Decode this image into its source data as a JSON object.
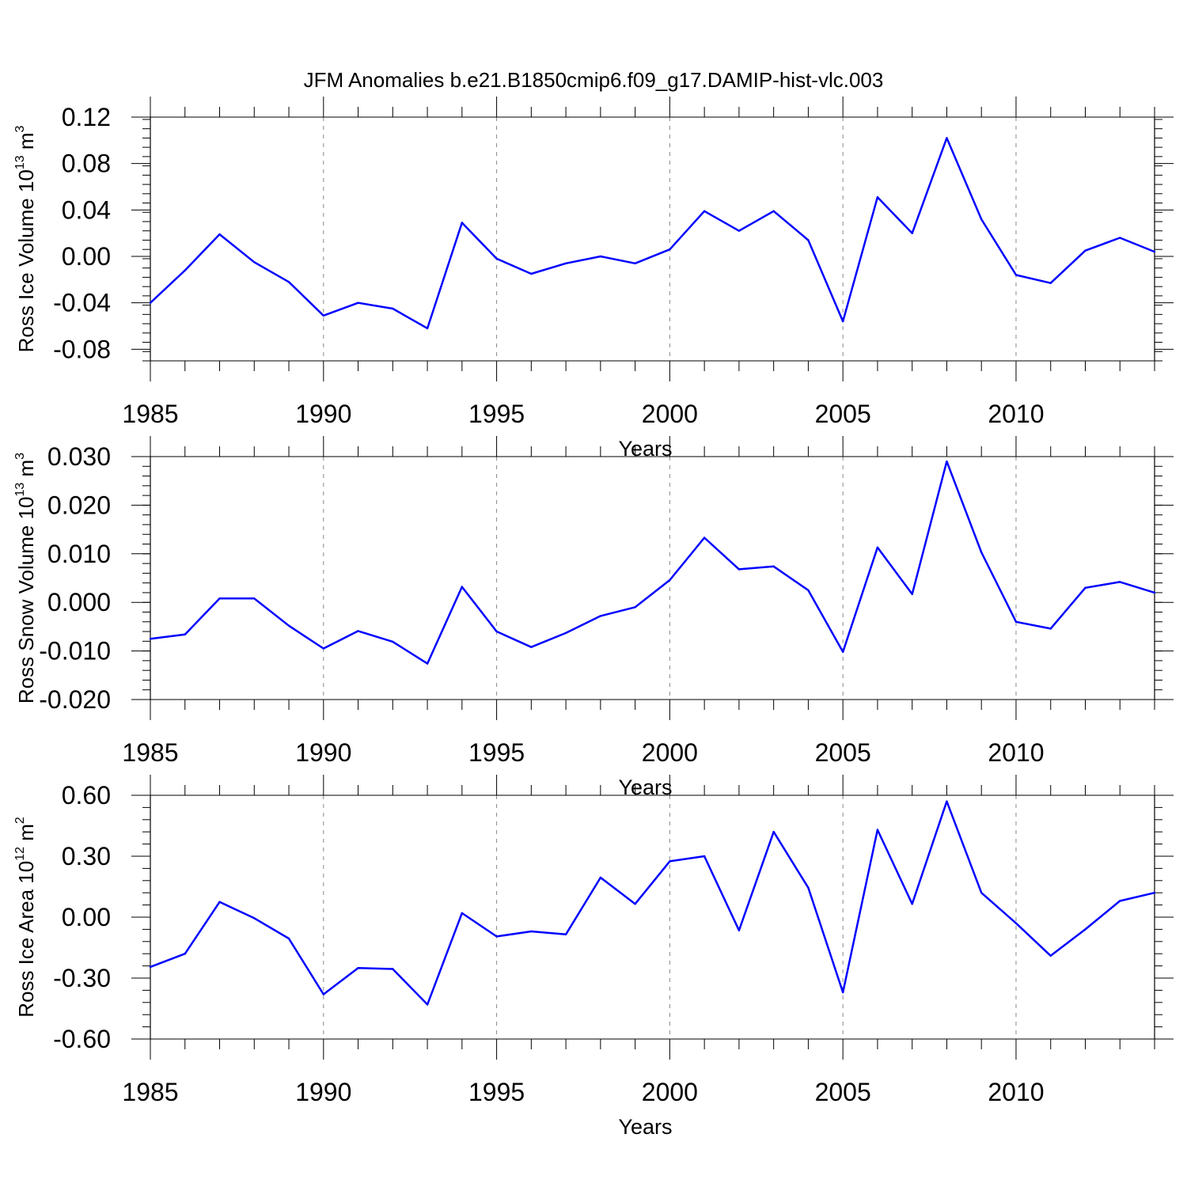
{
  "title": "JFM Anomalies b.e21.B1850cmip6.f09_g17.DAMIP-hist-vlc.003",
  "colors": {
    "line": "#0000ff",
    "axis": "#000000",
    "grid": "#888888"
  },
  "chart_data": [
    {
      "type": "line",
      "ylabel": {
        "main": "Ross Ice Volume 10",
        "exp": "13",
        "unit": " m",
        "unit_exp": "3"
      },
      "xlabel": "Years",
      "xlim": [
        1985,
        2014
      ],
      "ylim": [
        -0.09,
        0.12
      ],
      "yticks": [
        0.12,
        0.08,
        0.04,
        0.0,
        -0.04,
        -0.08
      ],
      "ytick_labels": [
        "0.12",
        "0.08",
        "0.04",
        "0.00",
        "-0.04",
        "-0.08"
      ],
      "xticks": [
        1985,
        1990,
        1995,
        2000,
        2005,
        2010
      ],
      "xtick_labels": [
        "1985",
        "1990",
        "1995",
        "2000",
        "2005",
        "2010"
      ],
      "x": [
        1985,
        1986,
        1987,
        1988,
        1989,
        1990,
        1991,
        1992,
        1993,
        1994,
        1995,
        1996,
        1997,
        1998,
        1999,
        2000,
        2001,
        2002,
        2003,
        2004,
        2005,
        2006,
        2007,
        2008,
        2009,
        2010,
        2011,
        2012,
        2013,
        2014
      ],
      "series": [
        {
          "name": "Ross Ice Volume",
          "values": [
            -0.04,
            -0.012,
            0.019,
            -0.005,
            -0.022,
            -0.051,
            -0.04,
            -0.045,
            -0.062,
            0.029,
            -0.002,
            -0.015,
            -0.006,
            0.0,
            -0.006,
            0.006,
            0.039,
            0.022,
            0.039,
            0.014,
            -0.056,
            0.051,
            0.02,
            0.102,
            0.032,
            -0.016,
            -0.023,
            0.005,
            0.016,
            0.004
          ]
        }
      ]
    },
    {
      "type": "line",
      "ylabel": {
        "main": "Ross Snow Volume 10",
        "exp": "13",
        "unit": " m",
        "unit_exp": "3"
      },
      "xlabel": "Years",
      "xlim": [
        1985,
        2014
      ],
      "ylim": [
        -0.02,
        0.03
      ],
      "yticks": [
        0.03,
        0.02,
        0.01,
        0.0,
        -0.01,
        -0.02
      ],
      "ytick_labels": [
        "0.030",
        "0.020",
        "0.010",
        "0.000",
        "-0.010",
        "-0.020"
      ],
      "xticks": [
        1985,
        1990,
        1995,
        2000,
        2005,
        2010
      ],
      "xtick_labels": [
        "1985",
        "1990",
        "1995",
        "2000",
        "2005",
        "2010"
      ],
      "x": [
        1985,
        1986,
        1987,
        1988,
        1989,
        1990,
        1991,
        1992,
        1993,
        1994,
        1995,
        1996,
        1997,
        1998,
        1999,
        2000,
        2001,
        2002,
        2003,
        2004,
        2005,
        2006,
        2007,
        2008,
        2009,
        2010,
        2011,
        2012,
        2013,
        2014
      ],
      "series": [
        {
          "name": "Ross Snow Volume",
          "values": [
            -0.0075,
            -0.0066,
            0.0008,
            0.0008,
            -0.0048,
            -0.0095,
            -0.0059,
            -0.0081,
            -0.0126,
            0.0032,
            -0.006,
            -0.0092,
            -0.0063,
            -0.0028,
            -0.001,
            0.0046,
            0.0133,
            0.0068,
            0.0074,
            0.0025,
            -0.0102,
            0.0113,
            0.0017,
            0.029,
            0.0103,
            -0.004,
            -0.0054,
            0.003,
            0.0042,
            0.002
          ]
        }
      ]
    },
    {
      "type": "line",
      "ylabel": {
        "main": "Ross Ice Area 10",
        "exp": "12",
        "unit": " m",
        "unit_exp": "2"
      },
      "xlabel": "Years",
      "xlim": [
        1985,
        2014
      ],
      "ylim": [
        -0.6,
        0.6
      ],
      "yticks": [
        0.6,
        0.3,
        0.0,
        -0.3,
        -0.6
      ],
      "ytick_labels": [
        "0.60",
        "0.30",
        "0.00",
        "-0.30",
        "-0.60"
      ],
      "xticks": [
        1985,
        1990,
        1995,
        2000,
        2005,
        2010
      ],
      "xtick_labels": [
        "1985",
        "1990",
        "1995",
        "2000",
        "2005",
        "2010"
      ],
      "x": [
        1985,
        1986,
        1987,
        1988,
        1989,
        1990,
        1991,
        1992,
        1993,
        1994,
        1995,
        1996,
        1997,
        1998,
        1999,
        2000,
        2001,
        2002,
        2003,
        2004,
        2005,
        2006,
        2007,
        2008,
        2009,
        2010,
        2011,
        2012,
        2013,
        2014
      ],
      "series": [
        {
          "name": "Ross Ice Area",
          "values": [
            -0.245,
            -0.18,
            0.075,
            -0.005,
            -0.105,
            -0.38,
            -0.25,
            -0.255,
            -0.43,
            0.02,
            -0.095,
            -0.07,
            -0.085,
            0.195,
            0.065,
            0.275,
            0.3,
            -0.065,
            0.42,
            0.145,
            -0.37,
            0.43,
            0.065,
            0.57,
            0.12,
            -0.03,
            -0.19,
            -0.06,
            0.08,
            0.12
          ]
        }
      ]
    }
  ]
}
